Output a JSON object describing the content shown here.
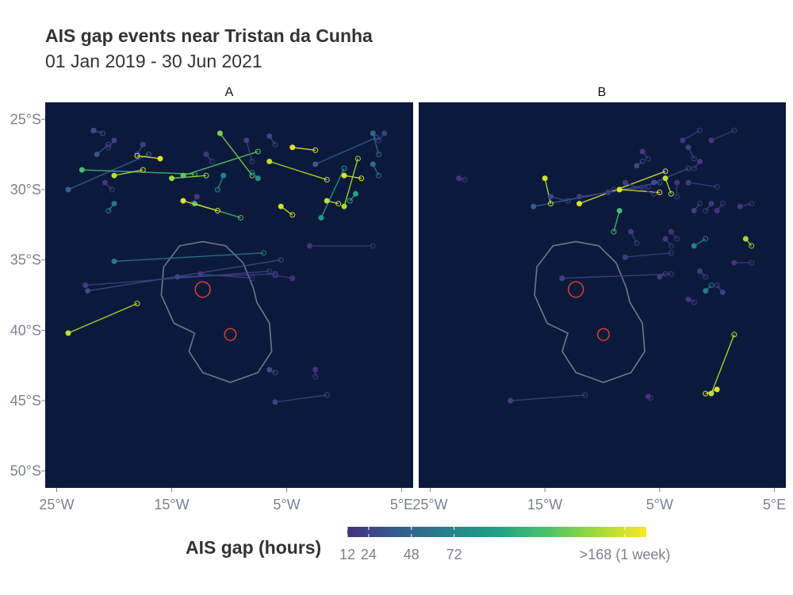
{
  "chart_data": {
    "type": "map",
    "title": "AIS gap events near Tristan da Cunha",
    "subtitle": "01 Jan 2019 - 30 Jun 2021",
    "panels": [
      "A",
      "B"
    ],
    "x_range": [
      -26,
      6
    ],
    "y_range": [
      -51.2,
      -23.8
    ],
    "x_ticks": [
      {
        "value": -25,
        "label": "25°W"
      },
      {
        "value": -15,
        "label": "15°W"
      },
      {
        "value": -5,
        "label": "5°W"
      },
      {
        "value": 5,
        "label": "5°E"
      }
    ],
    "y_ticks": [
      {
        "value": -25,
        "label": "25°S"
      },
      {
        "value": -30,
        "label": "30°S"
      },
      {
        "value": -35,
        "label": "35°S"
      },
      {
        "value": -40,
        "label": "40°S"
      },
      {
        "value": -45,
        "label": "45°S"
      },
      {
        "value": -50,
        "label": "50°S"
      }
    ],
    "colors": {
      "background": "#0b1a3b",
      "boundary": "#6b7891",
      "island": "#e8442e",
      "scale": [
        "#46317e",
        "#365c8d",
        "#277f8e",
        "#1fa187",
        "#4ac16d",
        "#a0da39",
        "#fde725"
      ]
    },
    "legend": {
      "title": "AIS gap (hours)",
      "min": 12,
      "max": 180,
      "ticks": [
        {
          "value": 12,
          "label": "12"
        },
        {
          "value": 24,
          "label": "24"
        },
        {
          "value": 48,
          "label": "48"
        },
        {
          "value": 72,
          "label": "72"
        },
        {
          "value": 168,
          "label": ">168 (1 week)"
        }
      ]
    },
    "islands": [
      {
        "name": "Tristan da Cunha",
        "lon": -12.3,
        "lat": -37.1,
        "r_lon": 0.65,
        "r_lat": 0.55
      },
      {
        "name": "Gough Island",
        "lon": -9.9,
        "lat": -40.3,
        "r_lon": 0.5,
        "r_lat": 0.42
      }
    ],
    "eez_boundary": [
      [
        -14.3,
        -34.0
      ],
      [
        -12.3,
        -33.7
      ],
      [
        -10.3,
        -34.0
      ],
      [
        -8.8,
        -35.2
      ],
      [
        -7.9,
        -37.0
      ],
      [
        -7.6,
        -38.0
      ],
      [
        -6.5,
        -39.5
      ],
      [
        -6.3,
        -41.5
      ],
      [
        -7.5,
        -43.0
      ],
      [
        -9.9,
        -43.7
      ],
      [
        -12.3,
        -43.0
      ],
      [
        -13.5,
        -41.5
      ],
      [
        -13.0,
        -40.2
      ],
      [
        -14.8,
        -39.5
      ],
      [
        -15.9,
        -37.5
      ],
      [
        -15.7,
        -35.5
      ],
      [
        -14.3,
        -34.0
      ]
    ],
    "events": {
      "A": [
        {
          "from": [
            -24.0,
            -30.0
          ],
          "to": [
            -17.0,
            -27.5
          ],
          "hours": 45
        },
        {
          "from": [
            -21.5,
            -27.5
          ],
          "to": [
            -20.5,
            -26.8
          ],
          "hours": 35
        },
        {
          "from": [
            -21.8,
            -25.8
          ],
          "to": [
            -21.0,
            -26.0
          ],
          "hours": 30
        },
        {
          "from": [
            -20.0,
            -26.5
          ],
          "to": [
            -20.5,
            -27.0
          ],
          "hours": 20
        },
        {
          "from": [
            -22.8,
            -28.6
          ],
          "to": [
            -13.0,
            -28.9
          ],
          "hours": 120
        },
        {
          "from": [
            -20.0,
            -29.0
          ],
          "to": [
            -17.5,
            -28.6
          ],
          "hours": 160
        },
        {
          "from": [
            -20.8,
            -29.5
          ],
          "to": [
            -20.2,
            -30.0
          ],
          "hours": 15
        },
        {
          "from": [
            -20.0,
            -31.0
          ],
          "to": [
            -20.5,
            -31.5
          ],
          "hours": 60
        },
        {
          "from": [
            -17.5,
            -26.8
          ],
          "to": [
            -18.0,
            -27.5
          ],
          "hours": 22
        },
        {
          "from": [
            -16.0,
            -27.8
          ],
          "to": [
            -18.0,
            -27.6
          ],
          "hours": 170
        },
        {
          "from": [
            -15.0,
            -29.2
          ],
          "to": [
            -12.0,
            -29.0
          ],
          "hours": 150
        },
        {
          "from": [
            -14.0,
            -29.0
          ],
          "to": [
            -7.5,
            -27.3
          ],
          "hours": 130
        },
        {
          "from": [
            -12.8,
            -30.5
          ],
          "to": [
            -13.2,
            -31.0
          ],
          "hours": 15
        },
        {
          "from": [
            -12.0,
            -27.5
          ],
          "to": [
            -11.5,
            -28.0
          ],
          "hours": 14
        },
        {
          "from": [
            -13.0,
            -31.0
          ],
          "to": [
            -9.0,
            -32.0
          ],
          "hours": 120
        },
        {
          "from": [
            -14.0,
            -30.8
          ],
          "to": [
            -11.0,
            -31.5
          ],
          "hours": 170
        },
        {
          "from": [
            -10.5,
            -29.0
          ],
          "to": [
            -11.0,
            -30.0
          ],
          "hours": 70
        },
        {
          "from": [
            -10.8,
            -26.0
          ],
          "to": [
            -8.0,
            -29.0
          ],
          "hours": 140
        },
        {
          "from": [
            -7.5,
            -29.2
          ],
          "to": [
            -8.0,
            -28.8
          ],
          "hours": 80
        },
        {
          "from": [
            -8.5,
            -26.5
          ],
          "to": [
            -8.0,
            -28.0
          ],
          "hours": 20
        },
        {
          "from": [
            -6.5,
            -26.2
          ],
          "to": [
            -6.0,
            -26.8
          ],
          "hours": 25
        },
        {
          "from": [
            -6.5,
            -28.0
          ],
          "to": [
            -1.5,
            -29.3
          ],
          "hours": 160
        },
        {
          "from": [
            -4.5,
            -27.0
          ],
          "to": [
            -2.5,
            -27.2
          ],
          "hours": 170
        },
        {
          "from": [
            -5.5,
            -31.2
          ],
          "to": [
            -4.5,
            -31.8
          ],
          "hours": 165
        },
        {
          "from": [
            -2.5,
            -28.2
          ],
          "to": [
            2.8,
            -26.3
          ],
          "hours": 40
        },
        {
          "from": [
            -2.0,
            -32.0
          ],
          "to": [
            0.0,
            -28.5
          ],
          "hours": 90
        },
        {
          "from": [
            -1.5,
            -30.8
          ],
          "to": [
            -0.5,
            -31.0
          ],
          "hours": 160
        },
        {
          "from": [
            0.0,
            -29.0
          ],
          "to": [
            1.5,
            -29.2
          ],
          "hours": 170
        },
        {
          "from": [
            0.0,
            -31.2
          ],
          "to": [
            1.2,
            -27.8
          ],
          "hours": 155
        },
        {
          "from": [
            1.0,
            -30.3
          ],
          "to": [
            0.5,
            -30.8
          ],
          "hours": 100
        },
        {
          "from": [
            2.5,
            -26.0
          ],
          "to": [
            3.0,
            -27.5
          ],
          "hours": 50
        },
        {
          "from": [
            2.5,
            -28.2
          ],
          "to": [
            3.0,
            -29.0
          ],
          "hours": 55
        },
        {
          "from": [
            3.5,
            -26.0
          ],
          "to": [
            3.0,
            -26.5
          ],
          "hours": 18
        },
        {
          "from": [
            -20.0,
            -35.1
          ],
          "to": [
            -7.0,
            -34.5
          ],
          "hours": 60
        },
        {
          "from": [
            -22.5,
            -36.8
          ],
          "to": [
            -6.5,
            -35.8
          ],
          "hours": 20
        },
        {
          "from": [
            -22.3,
            -37.2
          ],
          "to": [
            -5.5,
            -35.0
          ],
          "hours": 28
        },
        {
          "from": [
            -14.5,
            -36.2
          ],
          "to": [
            -6.0,
            -36.0
          ],
          "hours": 25
        },
        {
          "from": [
            -12.5,
            -36.0
          ],
          "to": [
            -8.0,
            -36.3
          ],
          "hours": 18
        },
        {
          "from": [
            -4.5,
            -36.3
          ],
          "to": [
            -6.0,
            -36.1
          ],
          "hours": 12
        },
        {
          "from": [
            -3.0,
            -34.0
          ],
          "to": [
            2.5,
            -34.0
          ],
          "hours": 14
        },
        {
          "from": [
            -24.0,
            -40.2
          ],
          "to": [
            -18.0,
            -38.1
          ],
          "hours": 160
        },
        {
          "from": [
            -6.5,
            -42.8
          ],
          "to": [
            -6.0,
            -43.0
          ],
          "hours": 30
        },
        {
          "from": [
            -2.5,
            -42.8
          ],
          "to": [
            -2.5,
            -43.3
          ],
          "hours": 14
        },
        {
          "from": [
            -6.0,
            -45.1
          ],
          "to": [
            -1.5,
            -44.6
          ],
          "hours": 22
        }
      ],
      "B": [
        {
          "from": [
            -22.5,
            -29.2
          ],
          "to": [
            -22.0,
            -29.3
          ],
          "hours": 14
        },
        {
          "from": [
            -16.0,
            -31.2
          ],
          "to": [
            -5.0,
            -29.5
          ],
          "hours": 40
        },
        {
          "from": [
            -15.0,
            -29.2
          ],
          "to": [
            -14.5,
            -31.0
          ],
          "hours": 165
        },
        {
          "from": [
            -14.5,
            -30.5
          ],
          "to": [
            -13.0,
            -30.8
          ],
          "hours": 25
        },
        {
          "from": [
            -12.0,
            -31.0
          ],
          "to": [
            -4.5,
            -28.7
          ],
          "hours": 170
        },
        {
          "from": [
            -12.0,
            -30.5
          ],
          "to": [
            -6.0,
            -29.8
          ],
          "hours": 20
        },
        {
          "from": [
            -9.5,
            -30.2
          ],
          "to": [
            -9.0,
            -30.0
          ],
          "hours": 20
        },
        {
          "from": [
            -8.5,
            -30.0
          ],
          "to": [
            -5.0,
            -30.2
          ],
          "hours": 170
        },
        {
          "from": [
            -8.0,
            -29.5
          ],
          "to": [
            -5.5,
            -30.3
          ],
          "hours": 18
        },
        {
          "from": [
            -7.0,
            -28.3
          ],
          "to": [
            -6.5,
            -28.0
          ],
          "hours": 25
        },
        {
          "from": [
            -6.5,
            -27.3
          ],
          "to": [
            -6.0,
            -27.8
          ],
          "hours": 18
        },
        {
          "from": [
            -5.5,
            -29.5
          ],
          "to": [
            -2.5,
            -28.5
          ],
          "hours": 30
        },
        {
          "from": [
            -4.5,
            -29.2
          ],
          "to": [
            -4.0,
            -30.3
          ],
          "hours": 160
        },
        {
          "from": [
            -3.5,
            -29.5
          ],
          "to": [
            -3.5,
            -30.5
          ],
          "hours": 15
        },
        {
          "from": [
            -2.5,
            -27.0
          ],
          "to": [
            -2.0,
            -27.8
          ],
          "hours": 20
        },
        {
          "from": [
            -1.5,
            -28.0
          ],
          "to": [
            -2.0,
            -28.5
          ],
          "hours": 15
        },
        {
          "from": [
            -2.5,
            -29.5
          ],
          "to": [
            0.0,
            -29.8
          ],
          "hours": 18
        },
        {
          "from": [
            -0.5,
            -26.5
          ],
          "to": [
            1.5,
            -25.8
          ],
          "hours": 14
        },
        {
          "from": [
            -2.0,
            -31.5
          ],
          "to": [
            -1.5,
            -31.0
          ],
          "hours": 20
        },
        {
          "from": [
            0.0,
            -31.5
          ],
          "to": [
            0.5,
            -31.0
          ],
          "hours": 12
        },
        {
          "from": [
            -0.5,
            -31.0
          ],
          "to": [
            -1.0,
            -31.5
          ],
          "hours": 15
        },
        {
          "from": [
            -8.5,
            -31.5
          ],
          "to": [
            -9.0,
            -33.0
          ],
          "hours": 120
        },
        {
          "from": [
            -7.5,
            -33.0
          ],
          "to": [
            -7.0,
            -33.8
          ],
          "hours": 20
        },
        {
          "from": [
            -8.0,
            -34.8
          ],
          "to": [
            -4.0,
            -34.5
          ],
          "hours": 20
        },
        {
          "from": [
            -4.5,
            -33.5
          ],
          "to": [
            -4.0,
            -34.0
          ],
          "hours": 15
        },
        {
          "from": [
            -4.0,
            -33.0
          ],
          "to": [
            -3.5,
            -33.5
          ],
          "hours": 15
        },
        {
          "from": [
            -2.0,
            -34.0
          ],
          "to": [
            -1.0,
            -33.5
          ],
          "hours": 70
        },
        {
          "from": [
            -1.5,
            -35.8
          ],
          "to": [
            -1.0,
            -36.2
          ],
          "hours": 20
        },
        {
          "from": [
            -1.0,
            -37.2
          ],
          "to": [
            -0.5,
            -36.8
          ],
          "hours": 60
        },
        {
          "from": [
            0.5,
            -37.3
          ],
          "to": [
            0.0,
            -36.8
          ],
          "hours": 20
        },
        {
          "from": [
            2.5,
            -33.5
          ],
          "to": [
            3.0,
            -34.0
          ],
          "hours": 150
        },
        {
          "from": [
            2.0,
            -31.2
          ],
          "to": [
            3.0,
            -31.0
          ],
          "hours": 15
        },
        {
          "from": [
            1.5,
            -35.2
          ],
          "to": [
            3.0,
            -35.2
          ],
          "hours": 14
        },
        {
          "from": [
            -2.5,
            -37.8
          ],
          "to": [
            -2.0,
            -38.0
          ],
          "hours": 14
        },
        {
          "from": [
            -13.5,
            -36.3
          ],
          "to": [
            -4.0,
            -36.0
          ],
          "hours": 22
        },
        {
          "from": [
            -5.0,
            -36.2
          ],
          "to": [
            -4.5,
            -36.0
          ],
          "hours": 18
        },
        {
          "from": [
            -0.5,
            -44.5
          ],
          "to": [
            1.5,
            -40.3
          ],
          "hours": 160
        },
        {
          "from": [
            0.0,
            -44.2
          ],
          "to": [
            -1.0,
            -44.5
          ],
          "hours": 170
        },
        {
          "from": [
            -18.0,
            -45.0
          ],
          "to": [
            -11.5,
            -44.6
          ],
          "hours": 22
        },
        {
          "from": [
            -6.0,
            -44.7
          ],
          "to": [
            -5.8,
            -44.8
          ],
          "hours": 14
        },
        {
          "from": [
            -3.0,
            -26.5
          ],
          "to": [
            -1.5,
            -25.8
          ],
          "hours": 15
        }
      ]
    }
  }
}
